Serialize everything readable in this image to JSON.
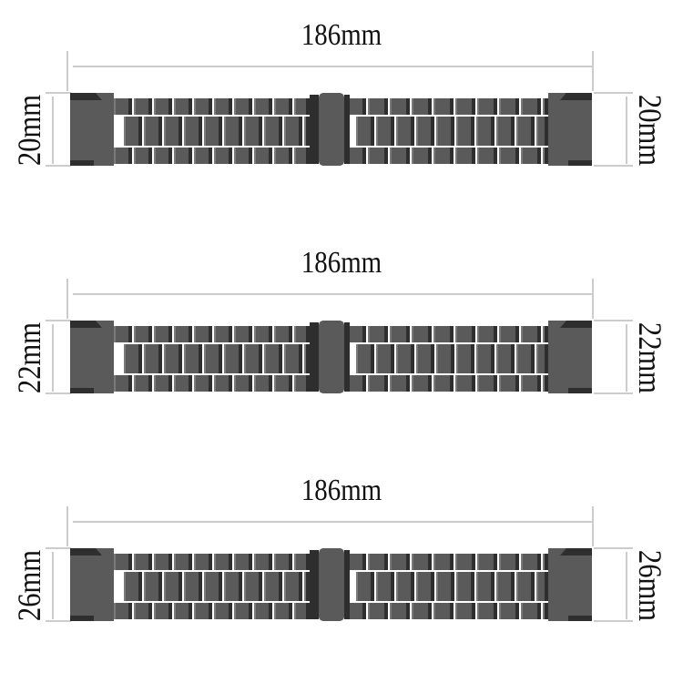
{
  "bands": [
    {
      "length_label": "186mm",
      "width_label": "20mm"
    },
    {
      "length_label": "186mm",
      "width_label": "22mm"
    },
    {
      "length_label": "186mm",
      "width_label": "26mm"
    }
  ],
  "colors": {
    "band": "#5a5a5a",
    "band_dark": "#2e2e2e",
    "band_light": "#7a7a7a",
    "dimension_line": "#999999",
    "text": "#111111"
  }
}
